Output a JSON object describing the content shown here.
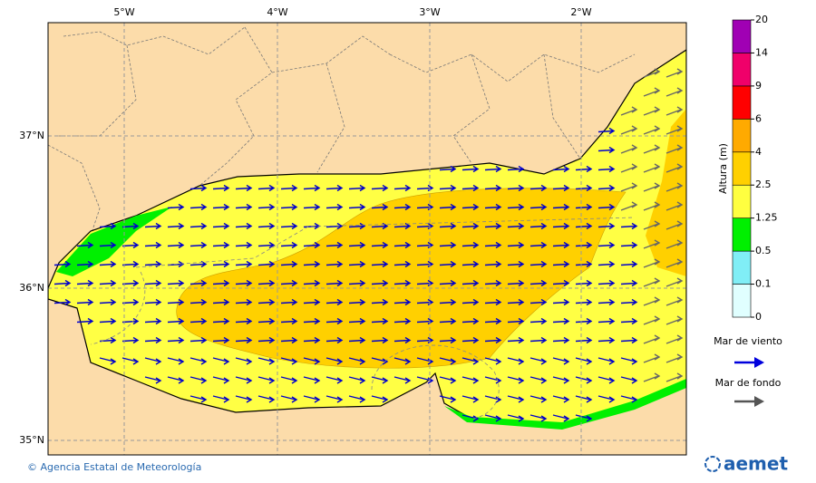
{
  "map": {
    "lon_labels": [
      "5°W",
      "4°W",
      "3°W",
      "2°W"
    ],
    "lat_labels": [
      "37°N",
      "36°N",
      "35°N"
    ]
  },
  "colorbar": {
    "title": "Altura (m)",
    "ticks": [
      0,
      0.1,
      0.5,
      1.25,
      2.5,
      4,
      6,
      9,
      14,
      20
    ],
    "colors": [
      "#e0ffff",
      "#80eef6",
      "#00f000",
      "#ffff40",
      "#ffd000",
      "#ffaa00",
      "#ff0000",
      "#f0006a",
      "#a000b4"
    ]
  },
  "legend": [
    {
      "label": "Mar de viento",
      "color": "#0000dd"
    },
    {
      "label": "Mar de fondo",
      "color": "#555555"
    }
  ],
  "footer": {
    "credit": "© Agencia Estatal de Meteorología",
    "logo": "aemet"
  }
}
